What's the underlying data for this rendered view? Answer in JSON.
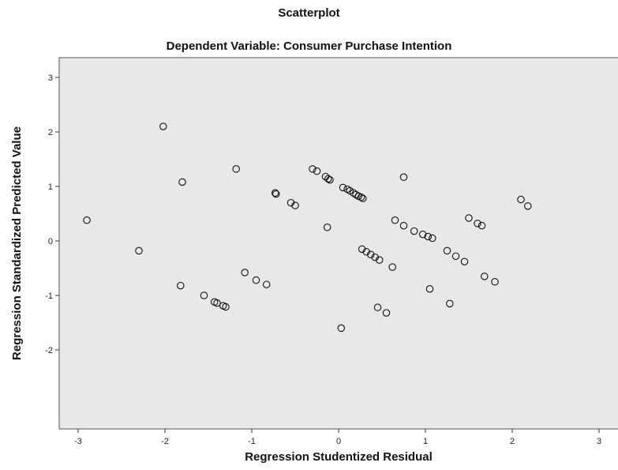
{
  "chart_data": {
    "type": "scatter",
    "title": "Scatterplot",
    "subtitle": "Dependent Variable: Consumer Purchase Intention",
    "xlabel": "Regression Studentized Residual",
    "ylabel": "Regression Standardized Predicted Value",
    "xlim": [
      -3.05,
      3.05
    ],
    "ylim": [
      -2.25,
      3.25
    ],
    "x_ticks": [
      -3,
      -2,
      -1,
      0,
      1,
      2,
      3
    ],
    "y_ticks": [
      -2,
      -1,
      0,
      1,
      2,
      3
    ],
    "grid": false,
    "legend": "none",
    "colors": {
      "plot_background": "#e8e8e8",
      "marker_stroke": "#111111",
      "axis": "#333333"
    },
    "points": [
      {
        "x": -2.9,
        "y": 0.38
      },
      {
        "x": -2.3,
        "y": -0.18
      },
      {
        "x": -2.02,
        "y": 2.1
      },
      {
        "x": -1.8,
        "y": 1.08
      },
      {
        "x": -1.82,
        "y": -0.82
      },
      {
        "x": -1.55,
        "y": -1.0
      },
      {
        "x": -1.43,
        "y": -1.12
      },
      {
        "x": -1.4,
        "y": -1.14
      },
      {
        "x": -1.33,
        "y": -1.19
      },
      {
        "x": -1.3,
        "y": -1.21
      },
      {
        "x": -1.18,
        "y": 1.32
      },
      {
        "x": -1.08,
        "y": -0.58
      },
      {
        "x": -0.95,
        "y": -0.72
      },
      {
        "x": -0.83,
        "y": -0.8
      },
      {
        "x": -0.73,
        "y": 0.88
      },
      {
        "x": -0.72,
        "y": 0.86
      },
      {
        "x": -0.55,
        "y": 0.7
      },
      {
        "x": -0.5,
        "y": 0.65
      },
      {
        "x": -0.3,
        "y": 1.32
      },
      {
        "x": -0.25,
        "y": 1.28
      },
      {
        "x": -0.15,
        "y": 1.18
      },
      {
        "x": -0.12,
        "y": 1.14
      },
      {
        "x": -0.1,
        "y": 1.12
      },
      {
        "x": 0.05,
        "y": 0.98
      },
      {
        "x": 0.1,
        "y": 0.95
      },
      {
        "x": 0.13,
        "y": 0.92
      },
      {
        "x": 0.17,
        "y": 0.88
      },
      {
        "x": 0.2,
        "y": 0.85
      },
      {
        "x": 0.23,
        "y": 0.82
      },
      {
        "x": 0.26,
        "y": 0.8
      },
      {
        "x": 0.28,
        "y": 0.78
      },
      {
        "x": -0.13,
        "y": 0.25
      },
      {
        "x": 0.03,
        "y": -1.6
      },
      {
        "x": 0.27,
        "y": -0.15
      },
      {
        "x": 0.32,
        "y": -0.2
      },
      {
        "x": 0.37,
        "y": -0.25
      },
      {
        "x": 0.42,
        "y": -0.3
      },
      {
        "x": 0.47,
        "y": -0.35
      },
      {
        "x": 0.62,
        "y": -0.48
      },
      {
        "x": 0.45,
        "y": -1.22
      },
      {
        "x": 0.55,
        "y": -1.32
      },
      {
        "x": 0.65,
        "y": 0.38
      },
      {
        "x": 0.75,
        "y": 0.28
      },
      {
        "x": 0.87,
        "y": 0.18
      },
      {
        "x": 0.97,
        "y": 0.12
      },
      {
        "x": 1.03,
        "y": 0.08
      },
      {
        "x": 1.08,
        "y": 0.05
      },
      {
        "x": 0.75,
        "y": 1.17
      },
      {
        "x": 1.05,
        "y": -0.88
      },
      {
        "x": 1.25,
        "y": -0.18
      },
      {
        "x": 1.35,
        "y": -0.28
      },
      {
        "x": 1.45,
        "y": -0.38
      },
      {
        "x": 1.28,
        "y": -1.15
      },
      {
        "x": 1.5,
        "y": 0.42
      },
      {
        "x": 1.6,
        "y": 0.32
      },
      {
        "x": 1.65,
        "y": 0.28
      },
      {
        "x": 1.68,
        "y": -0.65
      },
      {
        "x": 1.8,
        "y": -0.75
      },
      {
        "x": 2.1,
        "y": 0.76
      },
      {
        "x": 2.18,
        "y": 0.64
      }
    ]
  }
}
